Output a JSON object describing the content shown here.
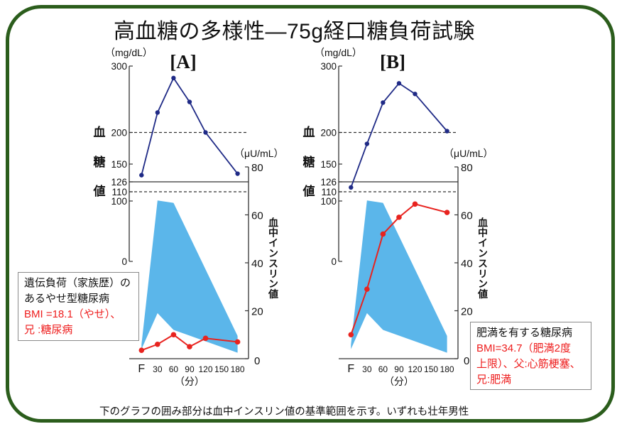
{
  "slide": {
    "title": "高血糖の多様性—75g経口糖負荷試験",
    "footnote": "下のグラフの囲み部分は血中インスリン値の基準範囲を示す。いずれも壮年男性",
    "colors": {
      "frame": "#2b5d1c",
      "text": "#111111",
      "highlight_text": "#ee1c1c",
      "glucose_line": "#1f2a86",
      "insulin_line": "#e8231f",
      "reference_band": "#5bb6ea",
      "reference_line": "#333333"
    }
  },
  "cases": [
    {
      "id": "A",
      "note_lines": [
        {
          "text": "遺伝負荷（家族歴）の",
          "highlight": false
        },
        {
          "text": "あるやせ型糖尿病",
          "highlight": false
        },
        {
          "text": "BMI =18.1（やせ）、",
          "highlight": true
        },
        {
          "text": "兄 :糖尿病",
          "highlight": true
        }
      ]
    },
    {
      "id": "B",
      "note_lines": [
        {
          "text": "肥満を有する糖尿病",
          "highlight": false
        },
        {
          "text": "BMI=34.7（肥満2度",
          "highlight": true
        },
        {
          "text": "上限）、父:心筋梗塞、",
          "highlight": true
        },
        {
          "text": "兄:肥満",
          "highlight": true
        }
      ]
    }
  ],
  "chart_data": [
    {
      "type": "line",
      "title": "[A]",
      "x_ticks": [
        "F",
        "30",
        "60",
        "90",
        "120",
        "150",
        "180"
      ],
      "x_minutes": [
        0,
        30,
        60,
        90,
        120,
        150,
        180
      ],
      "xlabel": "（分）",
      "left_axis": {
        "label_chars": [
          "血",
          "糖",
          "値"
        ],
        "unit": "（mg/dL）",
        "ticks": [
          300,
          200,
          150,
          126,
          110,
          100,
          0
        ]
      },
      "right_axis": {
        "label": "血中インスリン値",
        "unit": "（μU/mL）",
        "ticks": [
          80,
          60,
          40,
          20,
          0
        ],
        "range": [
          0,
          80
        ]
      },
      "reference_lines": [
        {
          "value": 200,
          "style": "dashed"
        },
        {
          "value": 126,
          "style": "solid"
        },
        {
          "value": 110,
          "style": "dashed"
        }
      ],
      "series": [
        {
          "name": "血糖値",
          "axis": "left",
          "x": [
            0,
            30,
            60,
            90,
            120,
            180
          ],
          "values": [
            135,
            230,
            282,
            246,
            200,
            137
          ]
        },
        {
          "name": "血中インスリン値",
          "axis": "right",
          "x": [
            0,
            30,
            60,
            90,
            120,
            180
          ],
          "values": [
            3.5,
            6,
            10,
            5,
            8.5,
            7
          ]
        }
      ],
      "reference_band": {
        "name": "血中インスリン値の基準範囲",
        "x": [
          0,
          30,
          60,
          180
        ],
        "upper": [
          6,
          66,
          65,
          9.5
        ],
        "lower": [
          4,
          19,
          12,
          2.5
        ]
      }
    },
    {
      "type": "line",
      "title": "[B]",
      "x_ticks": [
        "F",
        "30",
        "60",
        "90",
        "120",
        "150",
        "180"
      ],
      "x_minutes": [
        0,
        30,
        60,
        90,
        120,
        150,
        180
      ],
      "xlabel": "（分）",
      "left_axis": {
        "label_chars": [
          "血",
          "糖",
          "値"
        ],
        "unit": "（mg/dL）",
        "ticks": [
          300,
          200,
          150,
          126,
          110,
          100,
          0
        ]
      },
      "right_axis": {
        "label": "血中インスリン値",
        "unit": "（μU/mL）",
        "ticks": [
          80,
          60,
          40,
          20,
          0
        ],
        "range": [
          0,
          80
        ]
      },
      "reference_lines": [
        {
          "value": 200,
          "style": "dashed"
        },
        {
          "value": 126,
          "style": "solid"
        },
        {
          "value": 110,
          "style": "dashed"
        }
      ],
      "series": [
        {
          "name": "血糖値",
          "axis": "left",
          "x": [
            0,
            30,
            60,
            90,
            120,
            180
          ],
          "values": [
            117,
            182,
            245,
            274,
            258,
            202
          ]
        },
        {
          "name": "血中インスリン値",
          "axis": "right",
          "x": [
            0,
            30,
            60,
            90,
            120,
            180
          ],
          "values": [
            10,
            29,
            52,
            59,
            64.5,
            61
          ]
        }
      ],
      "reference_band": {
        "name": "血中インスリン値の基準範囲",
        "x": [
          0,
          30,
          60,
          180
        ],
        "upper": [
          6,
          66,
          65,
          9.5
        ],
        "lower": [
          4,
          19,
          12,
          2.5
        ]
      }
    }
  ]
}
